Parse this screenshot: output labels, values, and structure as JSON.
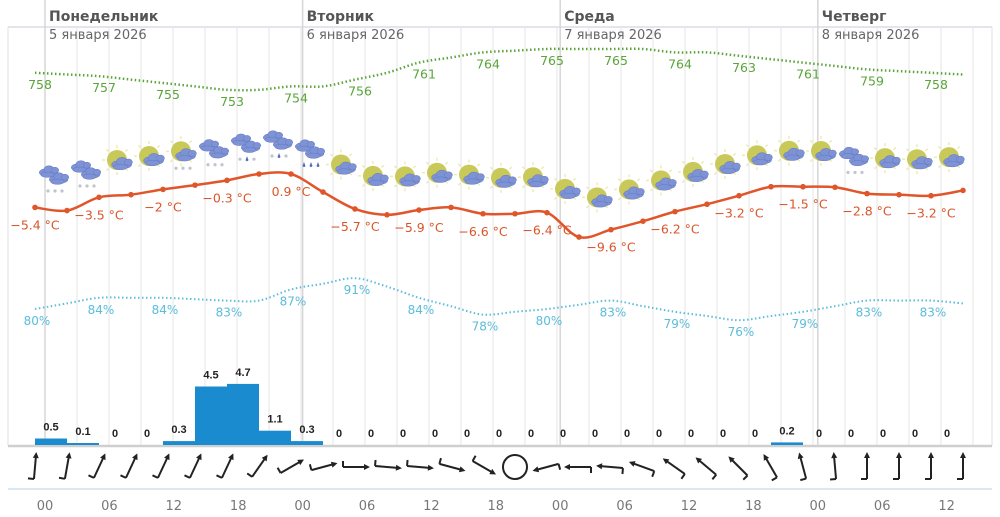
{
  "days": [
    {
      "name": "Понедельник",
      "date": "5 января 2026"
    },
    {
      "name": "Вторник",
      "date": "6 января 2026"
    },
    {
      "name": "Среда",
      "date": "7 января 2026"
    },
    {
      "name": "Четверг",
      "date": "8 января 2026"
    }
  ],
  "colors": {
    "pressure": "#5aa43a",
    "temperature": "#e0562a",
    "humidity": "#5bbcdc",
    "precipitation": "#1b8bd0",
    "grid": "#e4e4e4"
  },
  "chart_data": {
    "type": "line",
    "x_tick_labels": [
      "00",
      "06",
      "12",
      "18",
      "00",
      "06",
      "12",
      "18",
      "00",
      "06",
      "12",
      "18",
      "00",
      "06",
      "12"
    ],
    "interval_hours": 3,
    "pressure": {
      "unit": "",
      "labels": [
        "758",
        "757",
        "755",
        "753",
        "754",
        "756",
        "761",
        "764",
        "765",
        "765",
        "764",
        "763",
        "761",
        "759",
        "758"
      ],
      "values": [
        758,
        757.5,
        757,
        756,
        755,
        754,
        753,
        753,
        754,
        754,
        756,
        758,
        761,
        762.5,
        764,
        764.5,
        765,
        765,
        765,
        765,
        764,
        764,
        763,
        762,
        761,
        760,
        759,
        758.5,
        758,
        757.5
      ]
    },
    "temperature": {
      "unit": "°C",
      "labels": [
        "−5.4 °C",
        "−3.5 °C",
        "−2 °C",
        "−0.3 °C",
        "0.9 °C",
        "−5.7 °C",
        "−5.9 °C",
        "−6.6 °C",
        "−6.4 °C",
        "−9.6 °C",
        "−6.2 °C",
        "−3.2 °C",
        "−1.5 °C",
        "−2.8 °C",
        "−3.2 °C"
      ],
      "values": [
        -5.4,
        -6.0,
        -3.5,
        -3.0,
        -2.0,
        -1.2,
        -0.3,
        0.9,
        0.9,
        -2.5,
        -5.7,
        -6.8,
        -5.9,
        -5.4,
        -6.6,
        -6.6,
        -6.4,
        -11.0,
        -9.6,
        -8.0,
        -6.2,
        -4.8,
        -3.2,
        -1.5,
        -1.5,
        -1.6,
        -2.8,
        -3.0,
        -3.2,
        -2.2
      ]
    },
    "humidity": {
      "unit": "%",
      "labels": [
        "80%",
        "84%",
        "84%",
        "83%",
        "87%",
        "91%",
        "84%",
        "78%",
        "80%",
        "83%",
        "79%",
        "76%",
        "79%",
        "83%",
        "83%"
      ],
      "values": [
        80,
        82,
        84,
        84,
        84,
        83.5,
        83,
        83,
        87,
        89,
        91,
        88,
        84,
        81,
        78,
        79,
        80,
        81.5,
        83,
        81,
        79,
        77.5,
        76,
        77.5,
        79,
        81,
        83,
        83,
        83,
        82
      ]
    },
    "precipitation": {
      "unit": "mm",
      "labels": [
        "0.5",
        "0.1",
        "0",
        "0",
        "0.3",
        "4.5",
        "4.7",
        "1.1",
        "0.3",
        "0",
        "0",
        "0",
        "0",
        "0",
        "0",
        "0",
        "0",
        "0",
        "0",
        "0",
        "0",
        "0",
        "0",
        "0.2",
        "0",
        "0",
        "0",
        "0",
        "0"
      ],
      "values": [
        0.5,
        0.1,
        0,
        0,
        0.3,
        4.5,
        4.7,
        1.1,
        0.3,
        0,
        0,
        0,
        0,
        0,
        0,
        0,
        0,
        0,
        0,
        0,
        0,
        0,
        0,
        0.2,
        0,
        0,
        0,
        0,
        0
      ]
    },
    "wind_from_deg": [
      185,
      190,
      205,
      205,
      205,
      205,
      205,
      215,
      240,
      255,
      270,
      275,
      275,
      285,
      300,
      null,
      75,
      90,
      95,
      110,
      125,
      130,
      135,
      150,
      165,
      175,
      180,
      180,
      180,
      180
    ],
    "weather_icons": [
      "snow",
      "snow",
      "partly-cloudy",
      "partly-cloudy",
      "partly-cloudy-snow",
      "snow",
      "sleet",
      "sleet",
      "rain",
      "partly-cloudy",
      "partly-cloudy",
      "partly-cloudy",
      "partly-cloudy",
      "partly-cloudy",
      "partly-cloudy",
      "partly-cloudy",
      "partly-cloudy",
      "partly-cloudy",
      "partly-cloudy",
      "partly-cloudy",
      "partly-cloudy",
      "partly-cloudy",
      "partly-cloudy",
      "partly-cloudy",
      "partly-cloudy",
      "snow",
      "partly-cloudy",
      "partly-cloudy",
      "partly-cloudy"
    ],
    "grid": true
  }
}
